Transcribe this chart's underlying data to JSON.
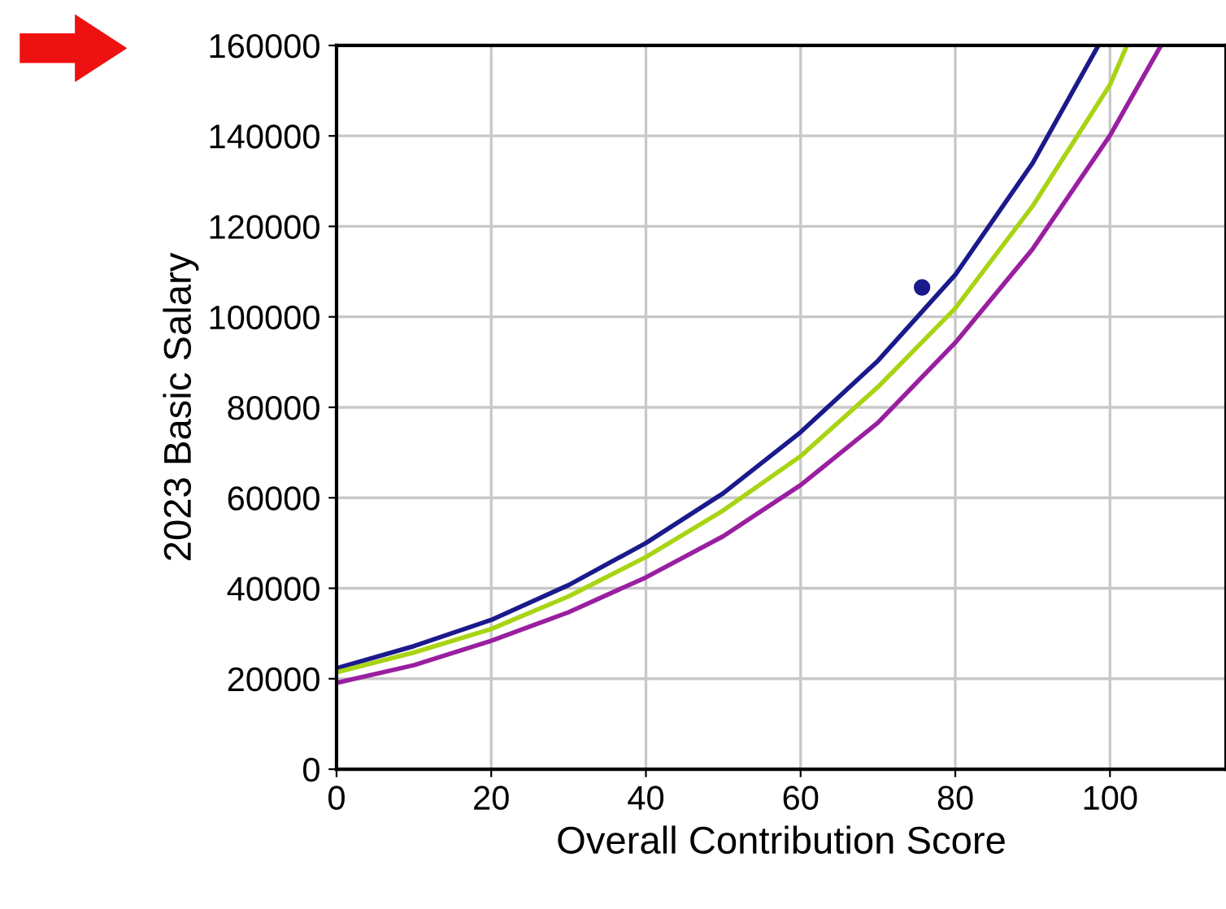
{
  "chart_data": {
    "type": "line",
    "xlabel": "Overall Contribution Score",
    "ylabel": "2023 Basic Salary",
    "xlim": [
      0,
      115
    ],
    "xticks": [
      0,
      20,
      40,
      60,
      80,
      100
    ],
    "ylim": [
      0,
      160000
    ],
    "yticks": [
      0,
      20000,
      40000,
      60000,
      80000,
      100000,
      120000,
      140000,
      160000
    ],
    "grid": true,
    "marker": "none",
    "line_style": "solid",
    "series": [
      {
        "color": "#1a1a8c",
        "x": [
          0,
          10,
          20,
          30,
          40,
          50,
          60,
          70,
          80,
          90,
          98.5
        ],
        "values": [
          22300,
          27200,
          33000,
          40700,
          50000,
          61000,
          74500,
          90300,
          109300,
          134000,
          160000
        ]
      },
      {
        "color": "#a8d414",
        "x": [
          0,
          10,
          20,
          30,
          40,
          50,
          60,
          70,
          80,
          90,
          100,
          102.2
        ],
        "values": [
          21400,
          25800,
          31000,
          38200,
          46900,
          57200,
          69200,
          84500,
          101900,
          124500,
          151300,
          160000
        ]
      },
      {
        "color": "#9a1fa0",
        "x": [
          0,
          10,
          20,
          30,
          40,
          50,
          60,
          70,
          80,
          90,
          100,
          106.6
        ],
        "values": [
          19100,
          23000,
          28400,
          34700,
          42400,
          51500,
          62800,
          76600,
          94300,
          115000,
          140100,
          160000
        ]
      },
      {
        "type": "scatter",
        "color": "#1a1a8c",
        "marker": "circle",
        "x": [
          75.7
        ],
        "values": [
          106500
        ]
      }
    ]
  }
}
